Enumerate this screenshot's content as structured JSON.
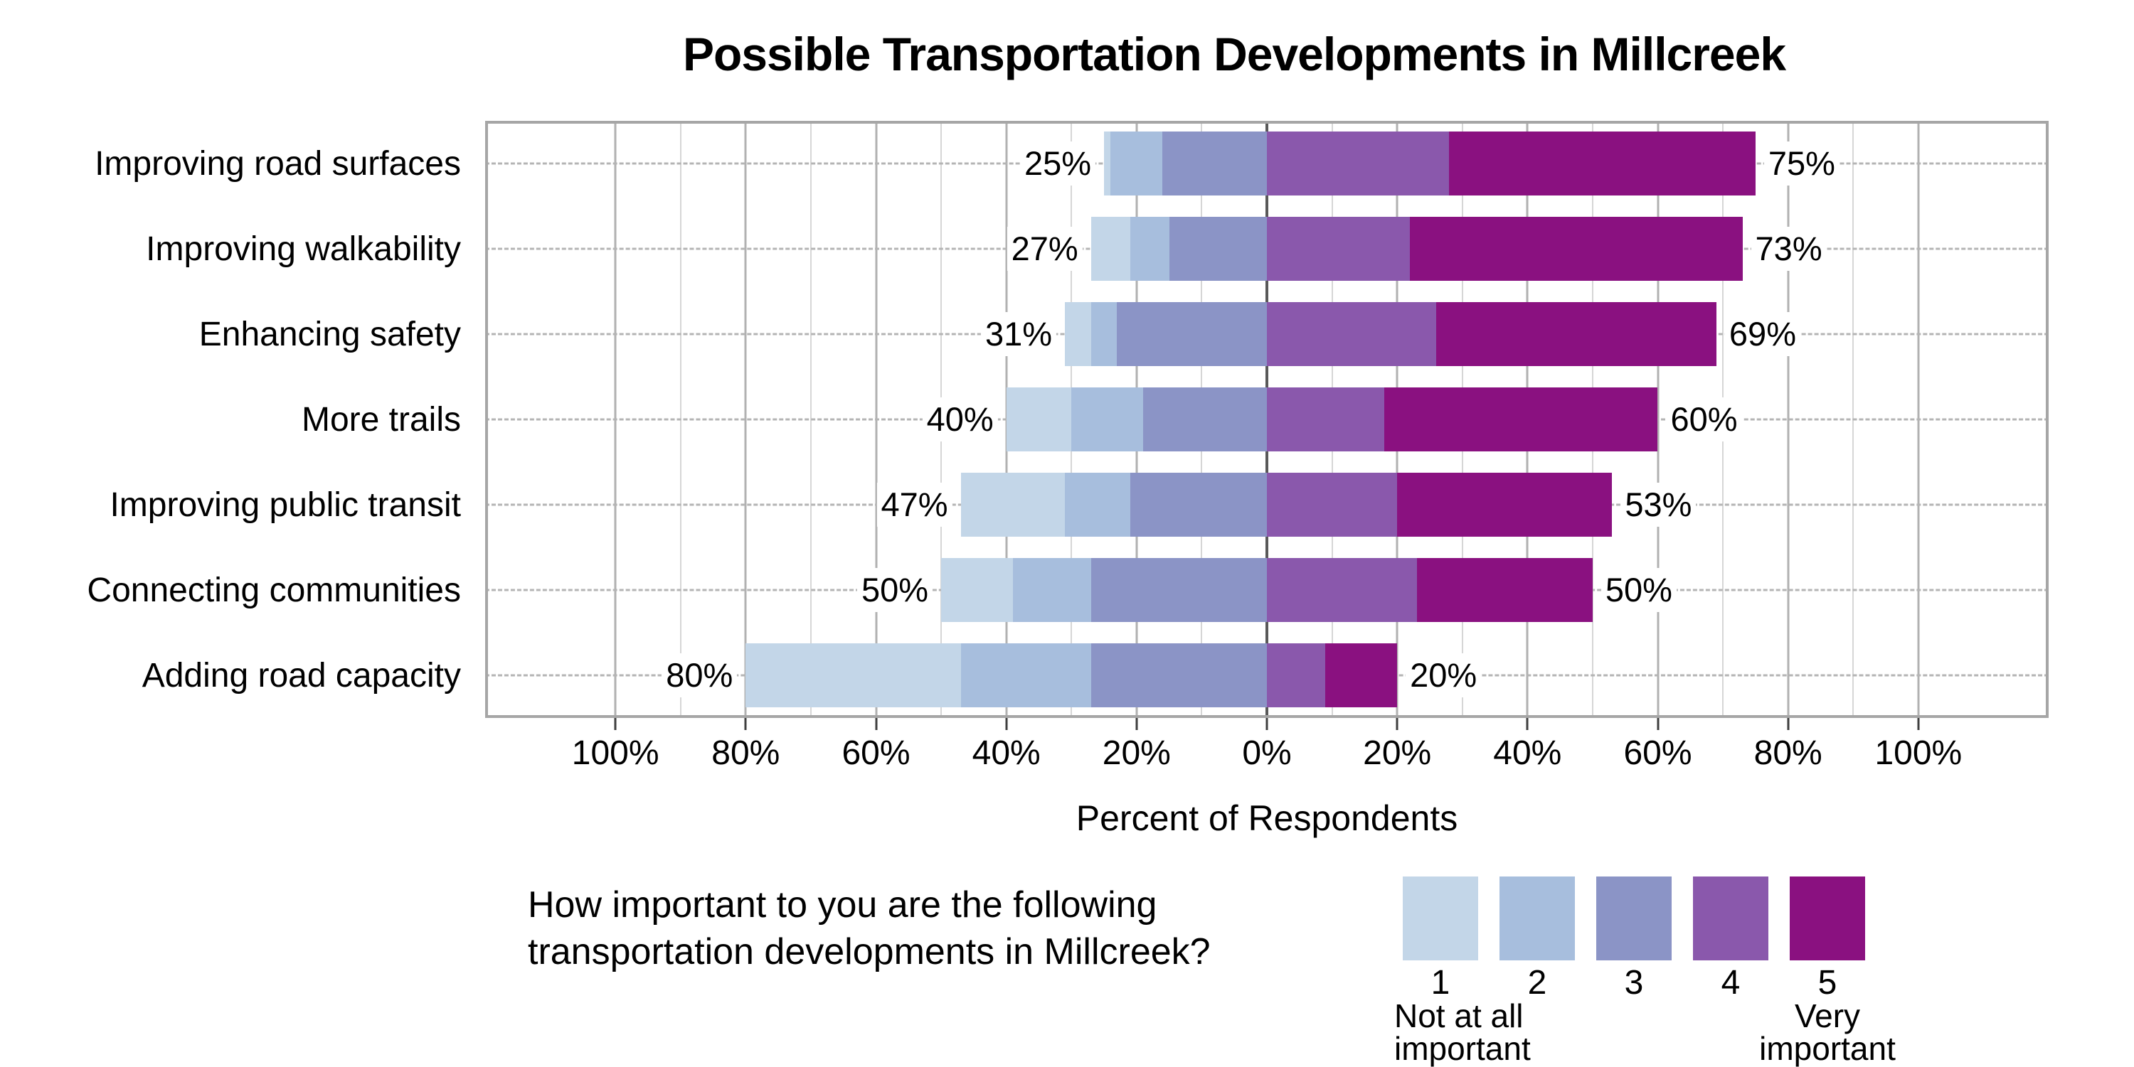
{
  "title": "Possible Transportation Developments in Millcreek",
  "x_axis": {
    "label": "Percent of Respondents",
    "tick_labels": [
      "100%",
      "80%",
      "60%",
      "40%",
      "20%",
      "0%",
      "20%",
      "40%",
      "60%",
      "80%",
      "100%"
    ],
    "tick_values": [
      -100,
      -80,
      -60,
      -40,
      -20,
      0,
      20,
      40,
      60,
      80,
      100
    ]
  },
  "question": {
    "line1": "How important to you are the following",
    "line2": "transportation developments in Millcreek?"
  },
  "legend": {
    "items": [
      {
        "value": "1",
        "color": "#c3d6e8"
      },
      {
        "value": "2",
        "color": "#a7bedd"
      },
      {
        "value": "3",
        "color": "#8b94c6"
      },
      {
        "value": "4",
        "color": "#8a58ac"
      },
      {
        "value": "5",
        "color": "#8a1180"
      }
    ],
    "min_label": {
      "line1": "Not at all",
      "line2": "important"
    },
    "max_label": {
      "line1": "Very",
      "line2": "important"
    }
  },
  "chart_data": {
    "type": "diverging-stacked-bar",
    "title": "Possible Transportation Developments in Millcreek",
    "xlabel": "Percent of Respondents",
    "axis_domain": [
      -120,
      120
    ],
    "gridline_step": 10,
    "tick_step": 20,
    "scale": [
      "1",
      "2",
      "3",
      "4",
      "5"
    ],
    "scale_min_meaning": "Not at all important",
    "scale_max_meaning": "Very important",
    "negative_side_ratings": [
      "1",
      "2",
      "3"
    ],
    "positive_side_ratings": [
      "4",
      "5"
    ],
    "categories": [
      "Improving road surfaces",
      "Improving walkability",
      "Enhancing safety",
      "More trails",
      "Improving public transit",
      "Connecting communities",
      "Adding road capacity"
    ],
    "rows": [
      {
        "category": "Improving road surfaces",
        "segments": [
          1,
          8,
          16,
          28,
          47
        ],
        "left_total": 25,
        "right_total": 75,
        "left_total_label": "25%",
        "right_total_label": "75%"
      },
      {
        "category": "Improving walkability",
        "segments": [
          6,
          6,
          15,
          22,
          51
        ],
        "left_total": 27,
        "right_total": 73,
        "left_total_label": "27%",
        "right_total_label": "73%"
      },
      {
        "category": "Enhancing safety",
        "segments": [
          4,
          4,
          23,
          26,
          43
        ],
        "left_total": 31,
        "right_total": 69,
        "left_total_label": "31%",
        "right_total_label": "69%"
      },
      {
        "category": "More trails",
        "segments": [
          10,
          11,
          19,
          18,
          42
        ],
        "left_total": 40,
        "right_total": 60,
        "left_total_label": "40%",
        "right_total_label": "60%"
      },
      {
        "category": "Improving public transit",
        "segments": [
          16,
          10,
          21,
          20,
          33
        ],
        "left_total": 47,
        "right_total": 53,
        "left_total_label": "47%",
        "right_total_label": "53%"
      },
      {
        "category": "Connecting communities",
        "segments": [
          11,
          12,
          27,
          23,
          27
        ],
        "left_total": 50,
        "right_total": 50,
        "left_total_label": "50%",
        "right_total_label": "50%"
      },
      {
        "category": "Adding road capacity",
        "segments": [
          33,
          20,
          27,
          9,
          11
        ],
        "left_total": 80,
        "right_total": 20,
        "left_total_label": "80%",
        "right_total_label": "20%"
      }
    ]
  }
}
